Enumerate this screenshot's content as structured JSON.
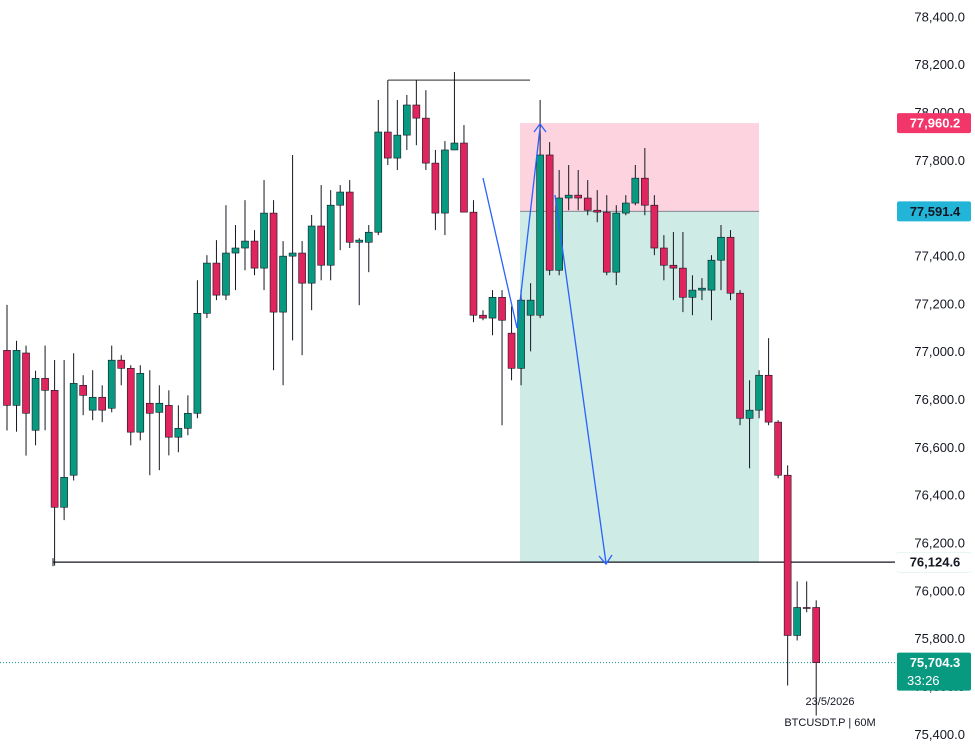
{
  "chart_data": {
    "type": "candlestick",
    "symbol": "BTCUSDT.P | 60M",
    "date_label": "23/5/2026",
    "countdown": "33:26",
    "up_color": "#089981",
    "down_color": "#e0245e",
    "ylim": [
      75360,
      78475
    ],
    "yticks": [
      {
        "value": 75400,
        "label": "75,400.0"
      },
      {
        "value": 75600,
        "label": "75,600.0"
      },
      {
        "value": 75800,
        "label": "75,800.0"
      },
      {
        "value": 76000,
        "label": "76,000.0"
      },
      {
        "value": 76200,
        "label": "76,200.0"
      },
      {
        "value": 76400,
        "label": "76,400.0"
      },
      {
        "value": 76600,
        "label": "76,600.0"
      },
      {
        "value": 76800,
        "label": "76,800.0"
      },
      {
        "value": 77000,
        "label": "77,000.0"
      },
      {
        "value": 77200,
        "label": "77,200.0"
      },
      {
        "value": 77400,
        "label": "77,400.0"
      },
      {
        "value": 77600,
        "label": "77,600.0"
      },
      {
        "value": 77800,
        "label": "77,800.0"
      },
      {
        "value": 78000,
        "label": "78,000.0"
      },
      {
        "value": 78200,
        "label": "78,200.0"
      },
      {
        "value": 78400,
        "label": "78,400.0"
      }
    ],
    "open": [
      77010,
      76780,
      76999,
      76676,
      76893,
      76843,
      76354,
      76488,
      76864,
      76760,
      76814,
      76768,
      76969,
      76935,
      76668,
      76789,
      76751,
      76780,
      76647,
      76684,
      76747,
      77165,
      77375,
      77241,
      77417,
      77438,
      77467,
      77354,
      77584,
      77170,
      77404,
      77417,
      77291,
      77530,
      77366,
      77617,
      77672,
      77462,
      77462,
      77504,
      77923,
      77814,
      77910,
      78036,
      77981,
      77793,
      77584,
      77848,
      77877,
      77588,
      77157,
      77145,
      77232,
      77082,
      76935,
      77157,
      77157,
      77827,
      77345,
      77647,
      77659,
      77647,
      77596,
      77588,
      77337,
      77584,
      77626,
      77730,
      77617,
      77438,
      77366,
      77354,
      77232,
      77262,
      77262,
      77387,
      77483,
      77249,
      76726,
      76760,
      76906,
      76710,
      76488,
      75818,
      75935,
      75935
    ],
    "high": [
      77200,
      77050,
      77030,
      76925,
      77030,
      76970,
      76970,
      76998,
      76906,
      76927,
      76864,
      77030,
      76990,
      76948,
      76948,
      76927,
      76864,
      76843,
      76780,
      76822,
      77303,
      77408,
      77471,
      77617,
      77534,
      77638,
      77513,
      77722,
      77638,
      77467,
      77827,
      77467,
      77576,
      77701,
      77680,
      77701,
      77722,
      77479,
      77534,
      78057,
      78140,
      78057,
      78078,
      78140,
      78098,
      77848,
      77885,
      78174,
      77952,
      77638,
      77178,
      77262,
      77262,
      77195,
      77262,
      77291,
      78057,
      77881,
      77764,
      77785,
      77764,
      77722,
      77680,
      77659,
      77617,
      77659,
      77785,
      77856,
      77659,
      77492,
      77505,
      77505,
      77324,
      77312,
      77408,
      77534,
      77513,
      77262,
      76885,
      76927,
      77061,
      76718,
      76529,
      76044,
      76044,
      75965
    ],
    "low": [
      76675,
      76670,
      76570,
      76613,
      76676,
      76110,
      76300,
      76466,
      76739,
      76718,
      76710,
      76751,
      76864,
      76613,
      76634,
      76488,
      76509,
      76571,
      76584,
      76655,
      76726,
      77145,
      77220,
      77220,
      77262,
      77345,
      77324,
      77262,
      76927,
      76864,
      77052,
      76990,
      77178,
      77303,
      77303,
      77429,
      77438,
      77199,
      77337,
      77492,
      77785,
      77764,
      77848,
      77868,
      77764,
      77513,
      77492,
      77848,
      77588,
      77128,
      77136,
      77073,
      76697,
      76885,
      76864,
      77006,
      77145,
      77324,
      77324,
      77596,
      77596,
      77575,
      77546,
      77324,
      77283,
      77575,
      77617,
      77575,
      77408,
      77303,
      77220,
      77170,
      77157,
      77220,
      77136,
      77262,
      77220,
      76697,
      76517,
      76726,
      76697,
      76475,
      75609,
      75797,
      75915,
      75483
    ],
    "close": [
      76780,
      77010,
      76747,
      76893,
      76843,
      76354,
      76479,
      76872,
      76822,
      76814,
      76760,
      76969,
      76935,
      76668,
      76914,
      76747,
      76789,
      76647,
      76684,
      76747,
      77165,
      77375,
      77241,
      77417,
      77438,
      77467,
      77354,
      77584,
      77170,
      77404,
      77417,
      77291,
      77530,
      77366,
      77617,
      77672,
      77462,
      77471,
      77504,
      77923,
      77814,
      77910,
      78036,
      77981,
      77793,
      77584,
      77848,
      77877,
      77588,
      77157,
      77145,
      77232,
      77136,
      76935,
      77220,
      77220,
      77827,
      77345,
      77647,
      77659,
      77647,
      77596,
      77588,
      77337,
      77584,
      77626,
      77730,
      77617,
      77438,
      77366,
      77354,
      77232,
      77262,
      77270,
      77387,
      77483,
      77249,
      76726,
      76760,
      76906,
      76710,
      76488,
      75818,
      75935,
      75932,
      75704.3
    ],
    "top_line": 78140,
    "level": {
      "value": 76124.6,
      "label": "76,124.6"
    },
    "position": {
      "stop": {
        "value": 77960.2,
        "label": "77,960.2"
      },
      "entry": {
        "value": 77591.4,
        "label": "77,591.4"
      },
      "target": {
        "value": 76124.7,
        "label": "76,124.7"
      }
    },
    "last_price": {
      "value": 75704.3,
      "label": "75,704.3"
    }
  }
}
